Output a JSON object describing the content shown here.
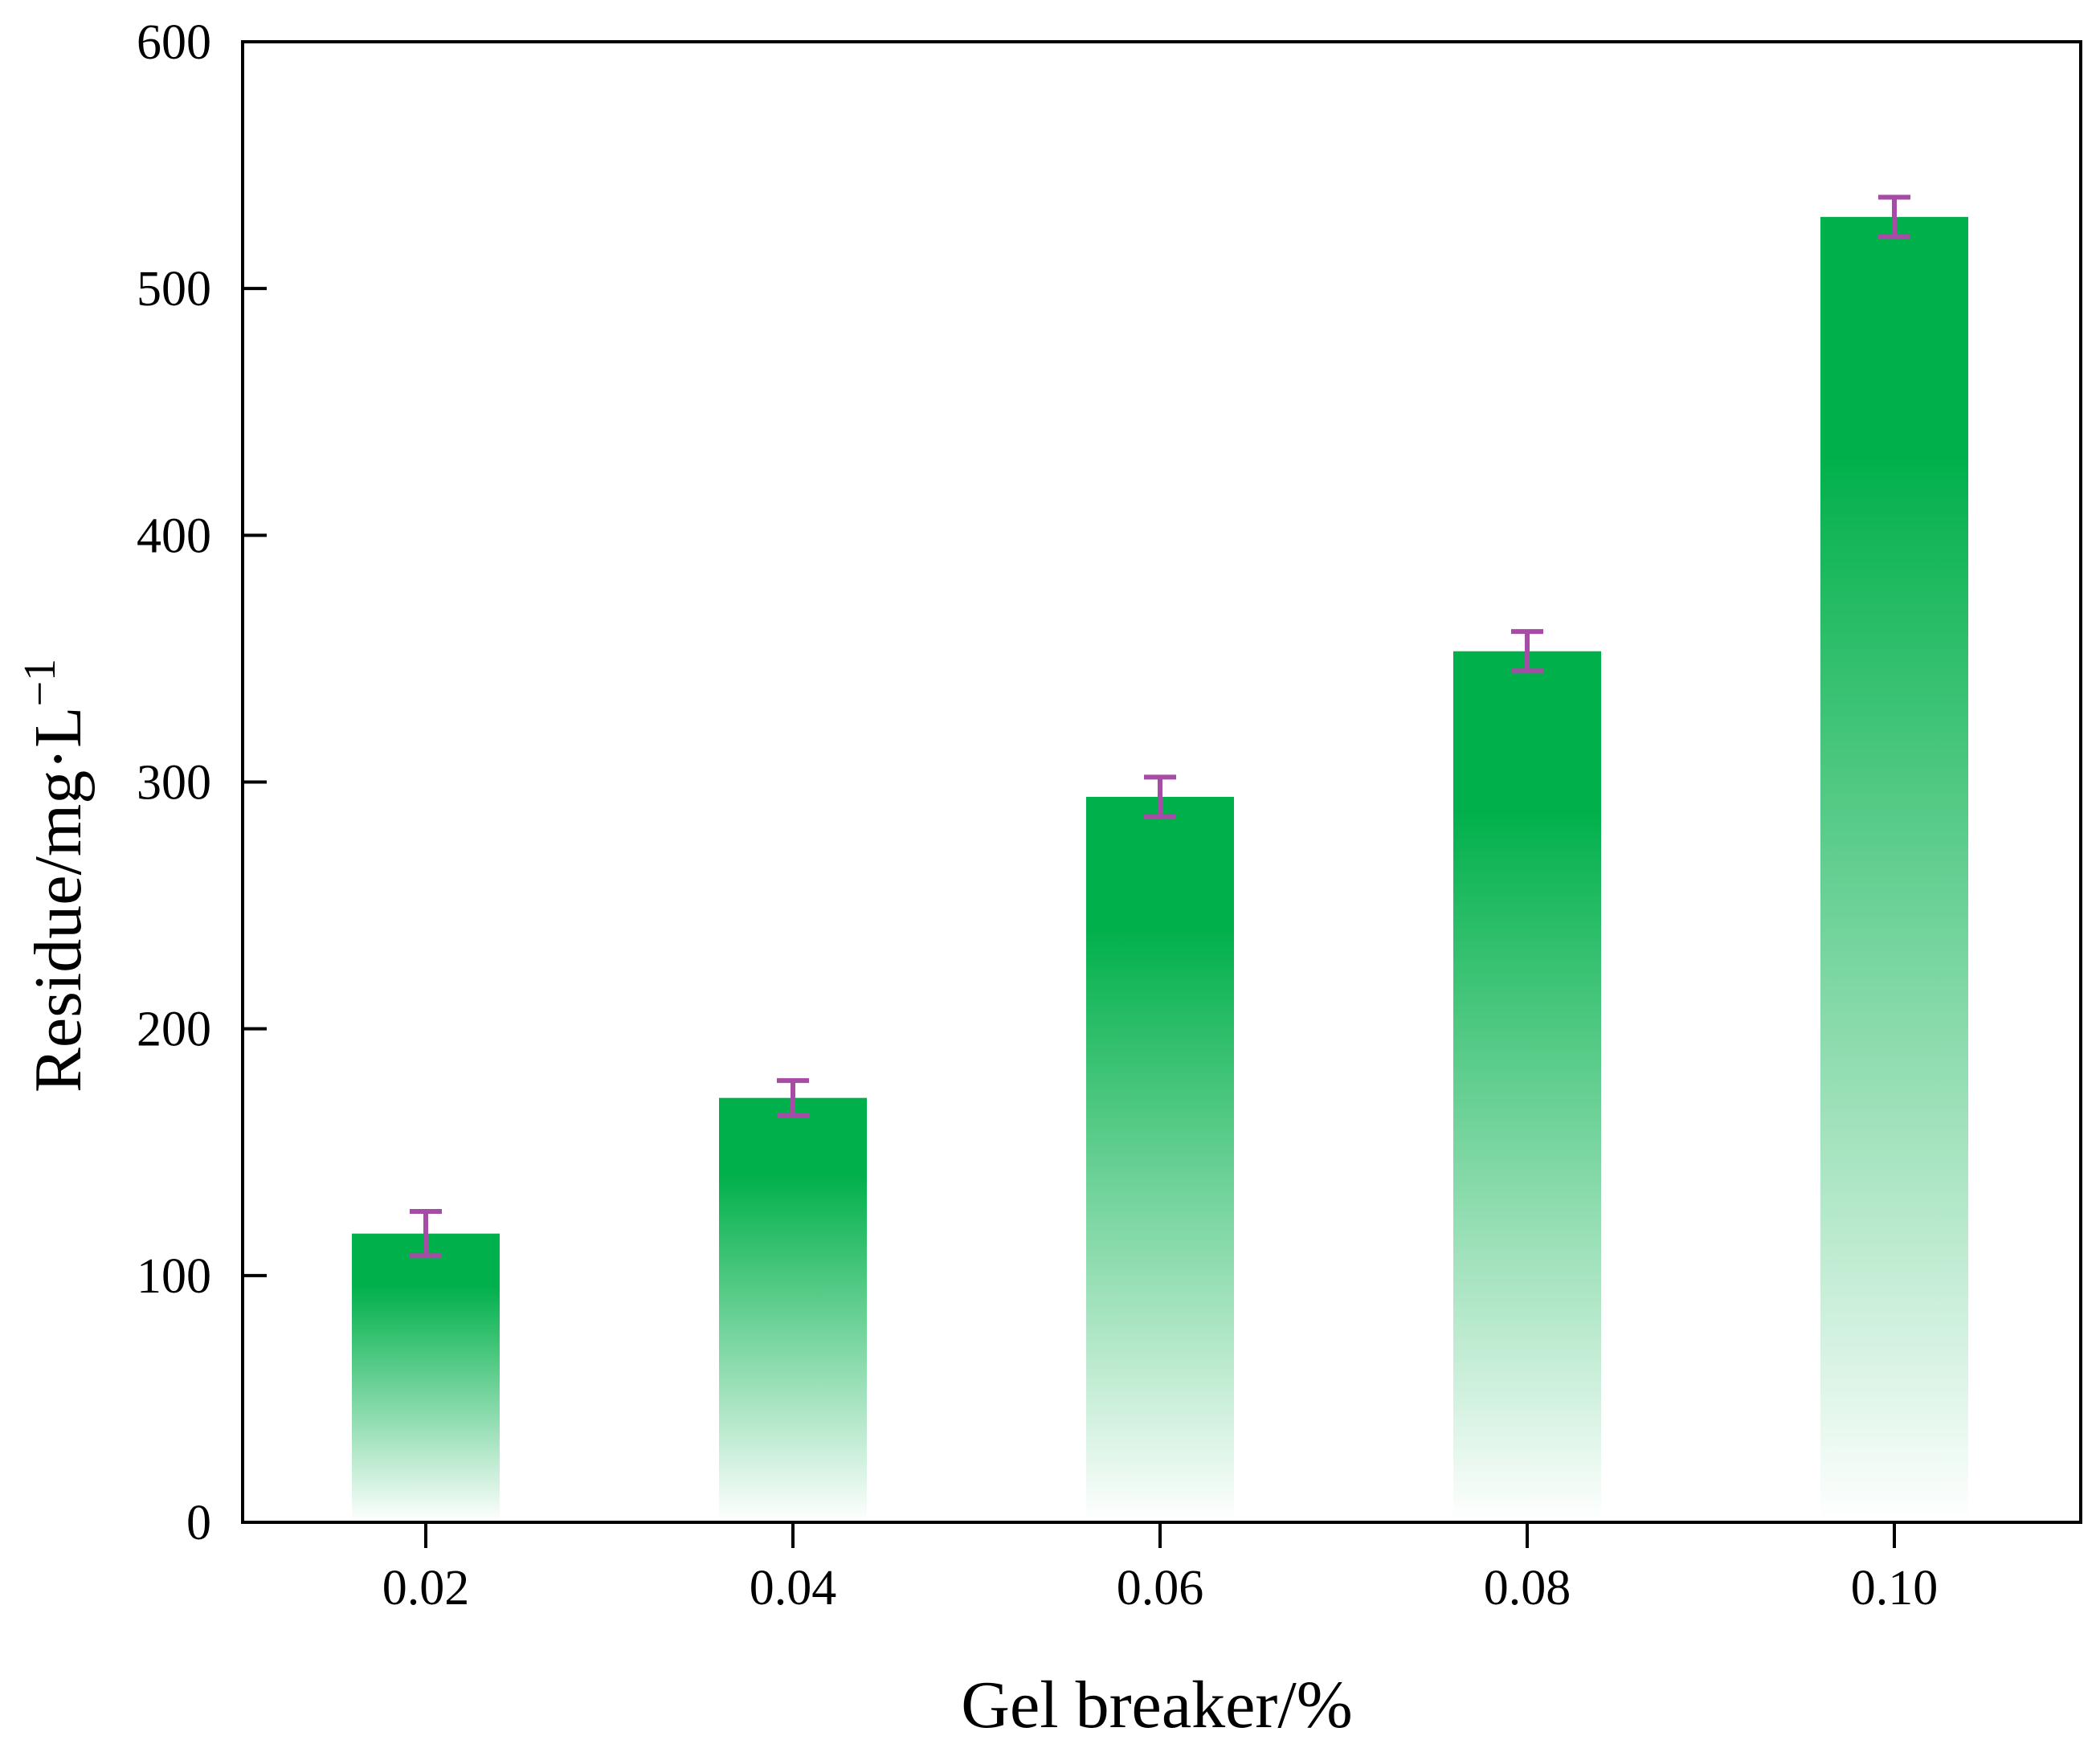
{
  "chart_data": {
    "type": "bar",
    "xlabel": "Gel breaker/%",
    "ylabel_main": "Residue/mg·L",
    "ylabel_superscript": "−1",
    "categories": [
      "0.02",
      "0.04",
      "0.06",
      "0.08",
      "0.10"
    ],
    "values": [
      117,
      172,
      294,
      353,
      529
    ],
    "error": [
      9,
      7,
      8,
      8,
      8
    ],
    "ylim": [
      0,
      600
    ],
    "yticks": [
      0,
      100,
      200,
      300,
      400,
      500,
      600
    ],
    "grid": false,
    "legend": "none",
    "colors": {
      "bar": "#00b04a",
      "bar_fade": "#ffffff",
      "error_bar": "#a64ca6",
      "axis": "#000000"
    }
  }
}
